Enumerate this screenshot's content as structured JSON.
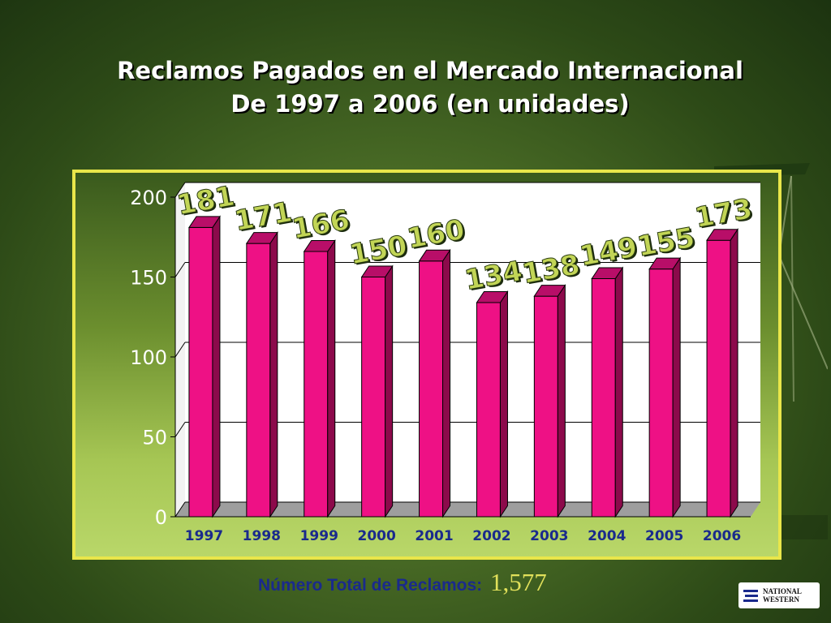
{
  "slide": {
    "title_line1": "Reclamos Pagados en el  Mercado Internacional",
    "title_line2": "De 1997 a 2006 (en unidades)",
    "footer_label": "Número Total de Reclamos:",
    "footer_value": "1,577",
    "logo_line1": "NATIONAL",
    "logo_line2": "WESTERN"
  },
  "colors": {
    "bar_face": "#ee1185",
    "bar_side": "#8c0a4b",
    "bar_top": "#b80e68",
    "value_label": "#c2d556",
    "tick_label": "#1a2a8c",
    "axis_label": "#ffffff",
    "panel_border": "#e9e64a"
  },
  "chart_data": {
    "type": "bar",
    "title": "Reclamos Pagados en el  Mercado Internacional De 1997 a 2006 (en unidades)",
    "categories": [
      "1997",
      "1998",
      "1999",
      "2000",
      "2001",
      "2002",
      "2003",
      "2004",
      "2005",
      "2006"
    ],
    "values": [
      181,
      171,
      166,
      150,
      160,
      134,
      138,
      149,
      155,
      173
    ],
    "ylim": [
      0,
      200
    ],
    "yticks": [
      0,
      50,
      100,
      150,
      200
    ],
    "grid": true,
    "three_d": true
  }
}
